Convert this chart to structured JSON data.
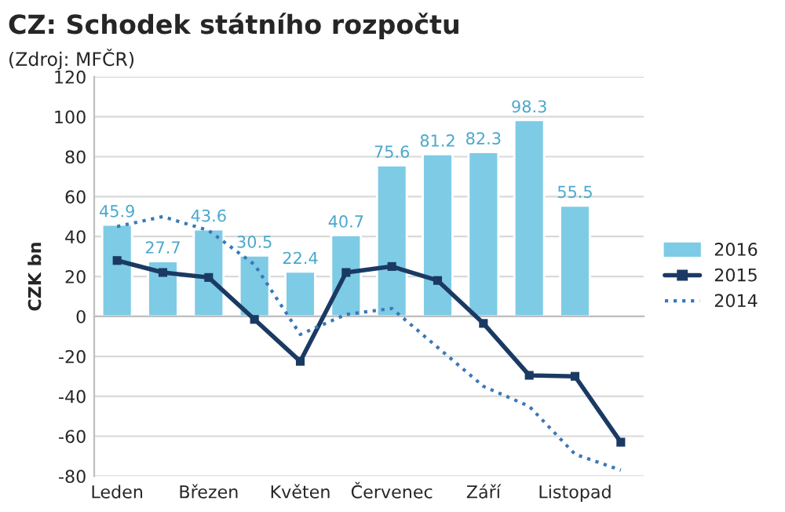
{
  "chart_data": {
    "type": "bar",
    "title": "CZ: Schodek státního rozpočtu",
    "annotations": [
      "(Zdroj: MFČR)"
    ],
    "ylabel": "CZK bn",
    "categories": [
      "Leden",
      null,
      "Březen",
      null,
      "Květen",
      null,
      "Červenec",
      null,
      "Září",
      null,
      "Listopad",
      null
    ],
    "series": [
      {
        "name": "2016",
        "color": "#7ecbe6",
        "values": [
          45.9,
          27.7,
          43.6,
          30.5,
          22.4,
          40.7,
          75.6,
          81.2,
          82.3,
          98.3,
          55.5,
          null
        ],
        "value_labels": [
          "45.9",
          "27.7",
          "43.6",
          "30.5",
          "22.4",
          "40.7",
          "75.6",
          "81.2",
          "82.3",
          "98.3",
          "55.5",
          null
        ]
      },
      {
        "name": "2015",
        "type": "line",
        "color": "#1b3a63",
        "marker": "square",
        "line_style": "solid",
        "values": [
          28,
          22,
          19.5,
          -1.5,
          -22.5,
          22,
          25,
          18,
          -3.5,
          -29.5,
          -30,
          -63
        ]
      },
      {
        "name": "2014",
        "type": "line",
        "color": "#3a78b8",
        "marker": "none",
        "line_style": "dotted",
        "values": [
          45,
          50,
          43,
          26,
          -9,
          1,
          4,
          -15.5,
          -35,
          -45,
          -69,
          -77
        ]
      }
    ],
    "ylim": [
      -80,
      120
    ],
    "yticks": [
      -80,
      -60,
      -40,
      -20,
      0,
      20,
      40,
      60,
      80,
      100,
      120
    ],
    "grid": "y",
    "legend": "right"
  }
}
